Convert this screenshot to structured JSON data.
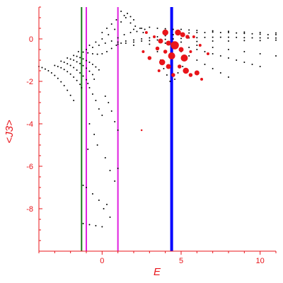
{
  "chart_data": {
    "type": "scatter",
    "xlabel": "E",
    "ylabel": "<J3>",
    "xlim": [
      -4.0,
      11.0
    ],
    "ylim": [
      -10.0,
      1.5
    ],
    "grid": false,
    "legend": "none",
    "axis_color": "#e8141a",
    "x_ticks": [
      {
        "value": 0,
        "label": "0"
      },
      {
        "value": 5,
        "label": "5"
      },
      {
        "value": 10,
        "label": "10"
      }
    ],
    "y_ticks": [
      {
        "value": 0,
        "label": "0"
      },
      {
        "value": -2,
        "label": "-2"
      },
      {
        "value": -4,
        "label": "-4"
      },
      {
        "value": -6,
        "label": "-6"
      },
      {
        "value": -8,
        "label": "-8"
      }
    ],
    "vertical_lines": [
      {
        "x": -1.3,
        "color": "#1a7a1a",
        "width": 2
      },
      {
        "x": -1.0,
        "color": "#e020e0",
        "width": 2
      },
      {
        "x": 1.0,
        "color": "#e020e0",
        "width": 2
      },
      {
        "x": 4.4,
        "color": "#0000ff",
        "width": 4
      }
    ],
    "series": [
      {
        "color": "#000000",
        "marker": "small-dot",
        "points": [
          [
            -4.0,
            -1.3
          ],
          [
            -3.8,
            -1.35
          ],
          [
            -3.6,
            -1.42
          ],
          [
            -3.4,
            -1.5
          ],
          [
            -3.2,
            -1.6
          ],
          [
            -3.0,
            -1.72
          ],
          [
            -2.8,
            -1.86
          ],
          [
            -2.6,
            -2.02
          ],
          [
            -2.4,
            -2.2
          ],
          [
            -2.2,
            -2.42
          ],
          [
            -2.0,
            -2.66
          ],
          [
            -1.8,
            -2.9
          ],
          [
            -3.0,
            -1.25
          ],
          [
            -2.8,
            -1.3
          ],
          [
            -2.6,
            -1.36
          ],
          [
            -2.4,
            -1.44
          ],
          [
            -2.2,
            -1.54
          ],
          [
            -2.0,
            -1.66
          ],
          [
            -1.8,
            -1.8
          ],
          [
            -1.6,
            -1.96
          ],
          [
            -1.4,
            -2.14
          ],
          [
            -1.3,
            -2.3
          ],
          [
            -2.6,
            -1.05
          ],
          [
            -2.4,
            -1.1
          ],
          [
            -2.2,
            -1.17
          ],
          [
            -2.0,
            -1.25
          ],
          [
            -1.8,
            -1.35
          ],
          [
            -1.6,
            -1.47
          ],
          [
            -1.4,
            -1.6
          ],
          [
            -1.2,
            -1.75
          ],
          [
            -1.0,
            -1.92
          ],
          [
            -0.9,
            -2.1
          ],
          [
            -2.2,
            -0.9
          ],
          [
            -2.0,
            -0.95
          ],
          [
            -1.8,
            -1.0
          ],
          [
            -1.6,
            -1.08
          ],
          [
            -1.4,
            -1.16
          ],
          [
            -1.2,
            -1.26
          ],
          [
            -1.0,
            -1.38
          ],
          [
            -0.8,
            -1.52
          ],
          [
            -0.6,
            -1.68
          ],
          [
            -0.5,
            -1.9
          ],
          [
            -1.8,
            -0.78
          ],
          [
            -1.6,
            -0.82
          ],
          [
            -1.4,
            -0.88
          ],
          [
            -1.2,
            -0.94
          ],
          [
            -1.0,
            -1.02
          ],
          [
            -0.8,
            -1.1
          ],
          [
            -0.6,
            -1.2
          ],
          [
            -0.4,
            -1.32
          ],
          [
            -0.2,
            -1.46
          ],
          [
            -1.5,
            -0.6
          ],
          [
            -1.2,
            -0.62
          ],
          [
            -0.9,
            -0.66
          ],
          [
            -0.6,
            -0.7
          ],
          [
            -0.3,
            -0.72
          ],
          [
            0.0,
            -0.7
          ],
          [
            0.3,
            -0.6
          ],
          [
            0.6,
            -0.45
          ],
          [
            0.9,
            -0.3
          ],
          [
            1.2,
            -0.2
          ],
          [
            -1.0,
            -0.5
          ],
          [
            -0.6,
            -0.4
          ],
          [
            -0.2,
            -0.3
          ],
          [
            0.2,
            -0.2
          ],
          [
            0.6,
            -0.1
          ],
          [
            1.0,
            0.05
          ],
          [
            1.4,
            0.2
          ],
          [
            1.8,
            0.3
          ],
          [
            2.2,
            0.35
          ],
          [
            2.6,
            0.3
          ],
          [
            -0.8,
            -0.3
          ],
          [
            -0.4,
            -0.15
          ],
          [
            0.0,
            0.0
          ],
          [
            0.4,
            0.2
          ],
          [
            0.8,
            0.45
          ],
          [
            1.2,
            0.8
          ],
          [
            1.4,
            1.1
          ],
          [
            1.6,
            1.2
          ],
          [
            1.8,
            1.05
          ],
          [
            2.0,
            0.9
          ],
          [
            0.0,
            0.3
          ],
          [
            0.3,
            0.5
          ],
          [
            0.6,
            0.7
          ],
          [
            0.9,
            0.9
          ],
          [
            1.2,
            1.3
          ],
          [
            1.5,
            1.0
          ],
          [
            1.8,
            0.75
          ],
          [
            2.1,
            0.6
          ],
          [
            2.4,
            0.5
          ],
          [
            2.7,
            0.45
          ],
          [
            1.0,
            -0.15
          ],
          [
            1.5,
            -0.1
          ],
          [
            2.0,
            -0.05
          ],
          [
            2.5,
            0.0
          ],
          [
            3.0,
            0.05
          ],
          [
            3.5,
            0.1
          ],
          [
            4.0,
            0.15
          ],
          [
            4.5,
            0.2
          ],
          [
            5.0,
            0.25
          ],
          [
            5.5,
            0.28
          ],
          [
            6.0,
            0.3
          ],
          [
            6.5,
            0.3
          ],
          [
            7.0,
            0.32
          ],
          [
            7.5,
            0.3
          ],
          [
            8.0,
            0.3
          ],
          [
            8.5,
            0.28
          ],
          [
            9.0,
            0.26
          ],
          [
            9.5,
            0.24
          ],
          [
            10.0,
            0.22
          ],
          [
            10.5,
            0.2
          ],
          [
            11.0,
            0.2
          ],
          [
            1.0,
            -0.25
          ],
          [
            1.5,
            -0.2
          ],
          [
            2.0,
            -0.15
          ],
          [
            2.5,
            -0.1
          ],
          [
            3.0,
            -0.08
          ],
          [
            3.5,
            -0.05
          ],
          [
            4.0,
            -0.02
          ],
          [
            4.5,
            0.0
          ],
          [
            5.0,
            0.02
          ],
          [
            5.5,
            0.05
          ],
          [
            6.0,
            0.06
          ],
          [
            6.5,
            0.07
          ],
          [
            7.0,
            0.08
          ],
          [
            7.5,
            0.08
          ],
          [
            8.0,
            0.08
          ],
          [
            8.5,
            0.07
          ],
          [
            9.0,
            0.06
          ],
          [
            9.5,
            0.05
          ],
          [
            10.0,
            0.05
          ],
          [
            10.5,
            0.04
          ],
          [
            11.0,
            0.04
          ],
          [
            2.0,
            -0.3
          ],
          [
            3.0,
            -0.25
          ],
          [
            4.0,
            -0.2
          ],
          [
            5.0,
            -0.15
          ],
          [
            6.0,
            -0.12
          ],
          [
            7.0,
            -0.1
          ],
          [
            8.0,
            -0.1
          ],
          [
            9.0,
            -0.08
          ],
          [
            10.0,
            -0.08
          ],
          [
            11.0,
            -0.06
          ],
          [
            2.0,
            0.45
          ],
          [
            2.5,
            0.5
          ],
          [
            3.0,
            0.55
          ],
          [
            3.5,
            0.5
          ],
          [
            4.0,
            0.48
          ],
          [
            4.5,
            0.45
          ],
          [
            5.0,
            0.45
          ],
          [
            5.5,
            0.42
          ],
          [
            6.0,
            0.4
          ],
          [
            7.0,
            0.38
          ],
          [
            8.0,
            0.36
          ],
          [
            9.0,
            0.32
          ],
          [
            10.0,
            0.3
          ],
          [
            11.0,
            0.28
          ],
          [
            5.5,
            -0.4
          ],
          [
            6.0,
            -0.5
          ],
          [
            6.5,
            -0.6
          ],
          [
            7.0,
            -0.7
          ],
          [
            7.5,
            -0.8
          ],
          [
            8.0,
            -0.9
          ],
          [
            8.5,
            -1.0
          ],
          [
            9.0,
            -1.1
          ],
          [
            9.5,
            -1.2
          ],
          [
            10.0,
            -1.3
          ],
          [
            5.0,
            -0.6
          ],
          [
            5.5,
            -0.8
          ],
          [
            6.0,
            -1.0
          ],
          [
            6.5,
            -1.2
          ],
          [
            7.0,
            -1.4
          ],
          [
            7.5,
            -1.6
          ],
          [
            8.0,
            -1.8
          ],
          [
            6.0,
            -0.3
          ],
          [
            7.0,
            -0.4
          ],
          [
            8.0,
            -0.5
          ],
          [
            9.0,
            -0.6
          ],
          [
            10.0,
            -0.7
          ],
          [
            11.0,
            -0.8
          ],
          [
            3.5,
            -0.6
          ],
          [
            3.7,
            -1.0
          ],
          [
            3.9,
            -1.4
          ],
          [
            4.1,
            -1.7
          ],
          [
            4.3,
            -2.0
          ],
          [
            4.6,
            -1.9
          ],
          [
            4.8,
            -1.6
          ],
          [
            5.1,
            -1.3
          ],
          [
            -0.8,
            -2.3
          ],
          [
            -0.6,
            -2.6
          ],
          [
            -0.4,
            -2.9
          ],
          [
            -0.2,
            -3.3
          ],
          [
            0.0,
            -3.6
          ],
          [
            0.2,
            -2.7
          ],
          [
            0.4,
            -3.0
          ],
          [
            0.6,
            -3.4
          ],
          [
            0.8,
            -3.9
          ],
          [
            1.0,
            -4.3
          ],
          [
            -0.8,
            -4.0
          ],
          [
            -0.5,
            -4.5
          ],
          [
            -0.3,
            -5.0
          ],
          [
            0.2,
            -5.6
          ],
          [
            0.5,
            -6.2
          ],
          [
            0.8,
            -6.7
          ],
          [
            -1.2,
            -6.9
          ],
          [
            -1.0,
            -7.0
          ],
          [
            -0.6,
            -7.3
          ],
          [
            -0.2,
            -7.6
          ],
          [
            0.1,
            -8.0
          ],
          [
            0.5,
            -8.4
          ],
          [
            -1.2,
            -8.7
          ],
          [
            -0.8,
            -8.75
          ],
          [
            -0.4,
            -8.8
          ],
          [
            0.0,
            -8.85
          ],
          [
            -0.9,
            -5.2
          ],
          [
            1.0,
            -6.1
          ],
          [
            0.3,
            -7.8
          ]
        ]
      },
      {
        "color": "#e8141a",
        "marker": "large-blob",
        "points": [
          [
            3.5,
            -0.45,
            3
          ],
          [
            3.7,
            -0.1,
            4
          ],
          [
            4.0,
            0.3,
            5
          ],
          [
            4.2,
            -0.2,
            4
          ],
          [
            4.4,
            -0.8,
            6
          ],
          [
            4.6,
            -0.3,
            7
          ],
          [
            4.8,
            0.3,
            5
          ],
          [
            5.0,
            -0.5,
            4
          ],
          [
            5.2,
            -0.9,
            6
          ],
          [
            5.4,
            0.1,
            3
          ],
          [
            3.8,
            -1.1,
            5
          ],
          [
            4.2,
            -1.3,
            4
          ],
          [
            4.5,
            -1.7,
            3
          ],
          [
            4.9,
            -1.3,
            3
          ],
          [
            5.3,
            -1.5,
            5
          ],
          [
            5.6,
            -1.7,
            3
          ],
          [
            6.0,
            -1.6,
            4
          ],
          [
            6.3,
            -1.9,
            2
          ],
          [
            3.0,
            -0.9,
            3
          ],
          [
            2.6,
            -0.6,
            2
          ],
          [
            4.0,
            -0.6,
            3
          ],
          [
            5.1,
            0.2,
            4
          ],
          [
            5.8,
            0.1,
            2
          ],
          [
            6.2,
            -0.3,
            2
          ],
          [
            3.3,
            0.1,
            2
          ],
          [
            2.8,
            0.3,
            2
          ],
          [
            5.6,
            -0.6,
            2
          ],
          [
            3.6,
            -1.5,
            2
          ],
          [
            6.7,
            -0.7,
            2
          ],
          [
            2.5,
            -4.3,
            1
          ]
        ]
      }
    ]
  }
}
